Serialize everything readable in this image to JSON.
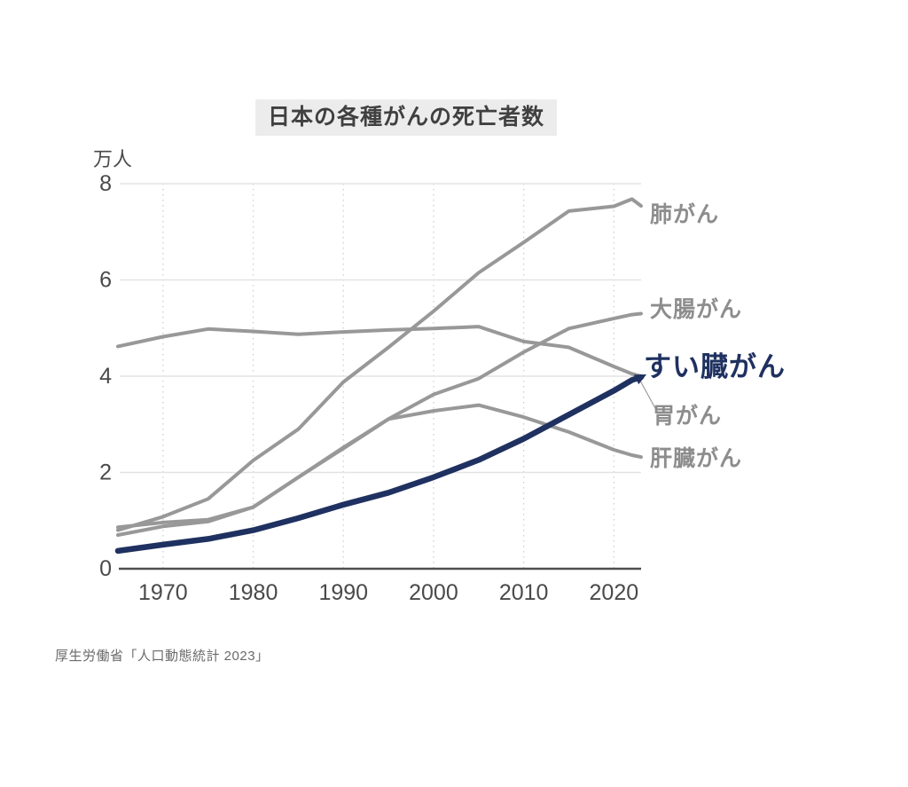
{
  "title": "日本の各種がんの死亡者数",
  "source": "厚生労働省「人口動態統計 2023」",
  "colors": {
    "background": "#ffffff",
    "title_box": "#ececec",
    "title_text": "#404040",
    "axis_line": "#4f4f4f",
    "tick_text": "#4a4a4a",
    "gridline_h": "#e3e3e3",
    "gridline_v_dotted": "#cfcfcf",
    "gray_series": "#989898",
    "gray_label": "#8d8d8d",
    "accent_navy": "#1f3160"
  },
  "chart_data": {
    "type": "line",
    "title": "日本の各種がんの死亡者数",
    "xlabel": "",
    "ylabel": "万人",
    "xlim": [
      1965,
      2023
    ],
    "ylim": [
      0,
      8.4
    ],
    "xticks": [
      1970,
      1980,
      1990,
      2000,
      2010,
      2020
    ],
    "yticks": [
      0,
      2,
      4,
      6,
      8
    ],
    "grid": {
      "horizontal": true,
      "vertical_dotted": true
    },
    "legend_position": "right-edge-labels",
    "x": [
      1965,
      1970,
      1975,
      1980,
      1985,
      1990,
      1995,
      2000,
      2005,
      2010,
      2015,
      2020,
      2022,
      2023
    ],
    "series": [
      {
        "key": "lung",
        "name": "肺がん",
        "color": "#989898",
        "width": 4,
        "emphasized": false,
        "values": [
          0.8,
          1.08,
          1.45,
          2.25,
          2.9,
          3.88,
          4.6,
          5.35,
          6.15,
          6.78,
          7.43,
          7.53,
          7.68,
          7.54
        ]
      },
      {
        "key": "stomach",
        "name": "胃がん",
        "color": "#989898",
        "width": 4,
        "emphasized": false,
        "values": [
          4.62,
          4.82,
          4.98,
          4.93,
          4.87,
          4.92,
          4.96,
          4.99,
          5.03,
          4.72,
          4.6,
          4.2,
          4.05,
          4.0
        ]
      },
      {
        "key": "colorectal",
        "name": "大腸がん",
        "color": "#989898",
        "width": 4,
        "emphasized": false,
        "values": [
          0.7,
          0.88,
          0.98,
          1.28,
          1.9,
          2.52,
          3.11,
          3.62,
          3.95,
          4.5,
          4.99,
          5.2,
          5.28,
          5.3
        ]
      },
      {
        "key": "liver",
        "name": "肝臓がん",
        "color": "#989898",
        "width": 4,
        "emphasized": false,
        "values": [
          0.86,
          0.96,
          1.02,
          1.28,
          1.9,
          2.5,
          3.11,
          3.28,
          3.4,
          3.15,
          2.84,
          2.47,
          2.36,
          2.32
        ]
      },
      {
        "key": "pancreas",
        "name": "すい臓がん",
        "color": "#1f3160",
        "width": 6.5,
        "emphasized": true,
        "values": [
          0.37,
          0.5,
          0.62,
          0.8,
          1.05,
          1.33,
          1.58,
          1.9,
          2.26,
          2.7,
          3.2,
          3.7,
          3.92,
          3.98
        ]
      }
    ]
  }
}
